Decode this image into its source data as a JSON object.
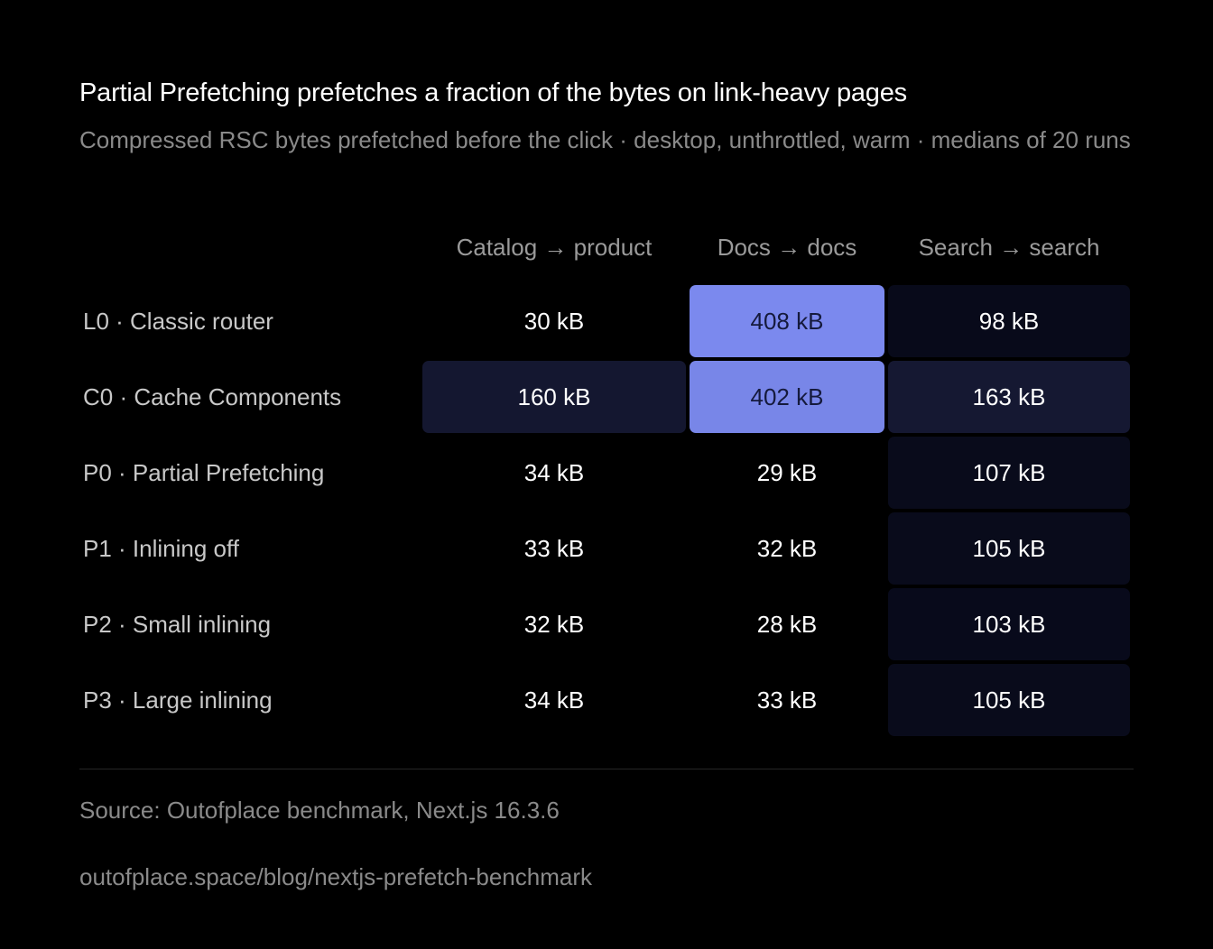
{
  "chart_data": {
    "type": "heatmap",
    "title": "Partial Prefetching prefetches a fraction of the bytes on link-heavy pages",
    "subtitle": "Compressed RSC bytes prefetched before the click · desktop, unthrottled, warm · medians of 20 runs",
    "unit": "kB",
    "columns": [
      "Catalog → product",
      "Docs → docs",
      "Search → search"
    ],
    "rows": [
      {
        "label": "L0 · Classic router",
        "values": [
          30,
          408,
          98
        ],
        "display": [
          "30 kB",
          "408 kB",
          "98 kB"
        ]
      },
      {
        "label": "C0 · Cache Components",
        "values": [
          160,
          402,
          163
        ],
        "display": [
          "160 kB",
          "402 kB",
          "163 kB"
        ]
      },
      {
        "label": "P0 · Partial Prefetching",
        "values": [
          34,
          29,
          107
        ],
        "display": [
          "34 kB",
          "29 kB",
          "107 kB"
        ]
      },
      {
        "label": "P1 · Inlining off",
        "values": [
          33,
          32,
          105
        ],
        "display": [
          "33 kB",
          "32 kB",
          "105 kB"
        ]
      },
      {
        "label": "P2 · Small inlining",
        "values": [
          32,
          28,
          103
        ],
        "display": [
          "32 kB",
          "28 kB",
          "103 kB"
        ]
      },
      {
        "label": "P3 · Large inlining",
        "values": [
          34,
          33,
          105
        ],
        "display": [
          "34 kB",
          "33 kB",
          "105 kB"
        ]
      }
    ],
    "colors": {
      "background": "#000000",
      "low": "#080a1a",
      "high": "#7b89ee",
      "text_light": "#ffffff",
      "text_dark": "#151a3c"
    }
  },
  "footer": {
    "source": "Source: Outofplace benchmark, Next.js 16.3.6",
    "url": "outofplace.space/blog/nextjs-prefetch-benchmark"
  }
}
